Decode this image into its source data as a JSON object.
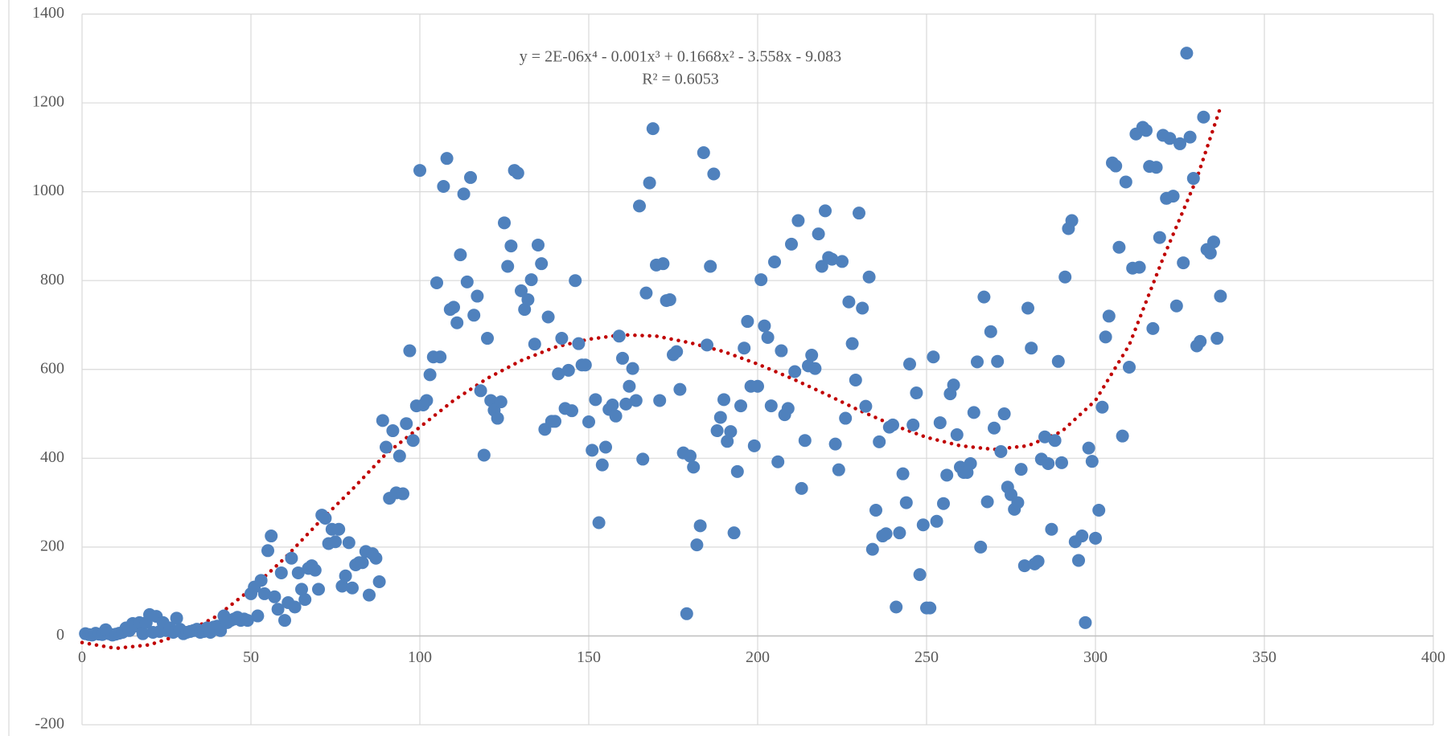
{
  "chart_data": {
    "type": "scatter",
    "color": "#4f81bd",
    "trendline_color": "#c00000",
    "grid": true,
    "xlim": [
      0,
      400
    ],
    "xticks": [
      0,
      50,
      100,
      150,
      200,
      250,
      300,
      350,
      400
    ],
    "ylim": [
      -200,
      1400
    ],
    "yticks": [
      -200,
      0,
      200,
      400,
      600,
      800,
      1000,
      1200,
      1400
    ],
    "annotations": [
      "y = 2E-06x⁴ - 0.001x³ + 0.1668x² - 3.558x - 9.083",
      "R² = 0.6053"
    ],
    "x": [
      1,
      2,
      3,
      4,
      5,
      6,
      7,
      8,
      9,
      10,
      11,
      12,
      13,
      14,
      15,
      16,
      17,
      18,
      19,
      20,
      21,
      22,
      23,
      24,
      25,
      26,
      27,
      28,
      29,
      30,
      31,
      32,
      33,
      34,
      35,
      36,
      37,
      38,
      39,
      40,
      41,
      42,
      43,
      44,
      45,
      46,
      47,
      48,
      49,
      50,
      51,
      52,
      53,
      54,
      55,
      56,
      57,
      58,
      59,
      60,
      61,
      62,
      63,
      64,
      65,
      66,
      67,
      68,
      69,
      70,
      71,
      72,
      73,
      74,
      75,
      76,
      77,
      78,
      79,
      80,
      81,
      82,
      83,
      84,
      85,
      86,
      87,
      88,
      89,
      90,
      91,
      92,
      93,
      94,
      95,
      96,
      97,
      98,
      99,
      100,
      101,
      102,
      103,
      104,
      105,
      106,
      107,
      108,
      109,
      110,
      111,
      112,
      113,
      114,
      115,
      116,
      117,
      118,
      119,
      120,
      121,
      122,
      123,
      124,
      125,
      126,
      127,
      128,
      129,
      130,
      131,
      132,
      133,
      134,
      135,
      136,
      137,
      138,
      139,
      140,
      141,
      142,
      143,
      144,
      145,
      146,
      147,
      148,
      149,
      150,
      151,
      152,
      153,
      154,
      155,
      156,
      157,
      158,
      159,
      160,
      161,
      162,
      163,
      164,
      165,
      166,
      167,
      168,
      169,
      170,
      171,
      172,
      173,
      174,
      175,
      176,
      177,
      178,
      179,
      180,
      181,
      182,
      183,
      184,
      185,
      186,
      187,
      188,
      189,
      190,
      191,
      192,
      193,
      194,
      195,
      196,
      197,
      198,
      199,
      200,
      201,
      202,
      203,
      204,
      205,
      206,
      207,
      208,
      209,
      210,
      211,
      212,
      213,
      214,
      215,
      216,
      217,
      218,
      219,
      220,
      221,
      222,
      223,
      224,
      225,
      226,
      227,
      228,
      229,
      230,
      231,
      232,
      233,
      234,
      235,
      236,
      237,
      238,
      239,
      240,
      241,
      242,
      243,
      244,
      245,
      246,
      247,
      248,
      249,
      250,
      251,
      252,
      253,
      254,
      255,
      256,
      257,
      258,
      259,
      260,
      261,
      262,
      263,
      264,
      265,
      266,
      267,
      268,
      269,
      270,
      271,
      272,
      273,
      274,
      275,
      276,
      277,
      278,
      279,
      280,
      281,
      282,
      283,
      284,
      285,
      286,
      287,
      288,
      289,
      290,
      291,
      292,
      293,
      294,
      295,
      296,
      297,
      298,
      299,
      300,
      301,
      302,
      303,
      304,
      305,
      306,
      307,
      308,
      309,
      310,
      311,
      312,
      313,
      314,
      315,
      316,
      317,
      318,
      319,
      320,
      321,
      322,
      323,
      324,
      325,
      326,
      327,
      328,
      329,
      330,
      331,
      332,
      333,
      334,
      335,
      336,
      337
    ],
    "values": [
      5,
      3,
      2,
      6,
      4,
      3,
      14,
      5,
      2,
      4,
      6,
      8,
      18,
      12,
      28,
      22,
      30,
      5,
      30,
      48,
      8,
      44,
      10,
      30,
      12,
      18,
      8,
      40,
      15,
      5,
      8,
      10,
      12,
      15,
      8,
      10,
      18,
      8,
      20,
      22,
      12,
      45,
      30,
      35,
      38,
      42,
      35,
      38,
      35,
      95,
      110,
      45,
      125,
      95,
      192,
      225,
      88,
      60,
      142,
      35,
      75,
      175,
      65,
      142,
      105,
      82,
      152,
      158,
      148,
      105,
      272,
      265,
      208,
      240,
      212,
      240,
      112,
      135,
      210,
      108,
      160,
      165,
      165,
      190,
      92,
      185,
      175,
      122,
      485,
      425,
      310,
      462,
      322,
      405,
      320,
      478,
      642,
      440,
      518,
      1048,
      520,
      530,
      588,
      628,
      795,
      628,
      1012,
      1075,
      735,
      740,
      705,
      858,
      995,
      797,
      1032,
      722,
      765,
      552,
      407,
      670,
      530,
      508,
      490,
      527,
      930,
      832,
      878,
      1048,
      1042,
      777,
      735,
      757,
      802,
      657,
      880,
      838,
      465,
      718,
      483,
      483,
      590,
      670,
      512,
      598,
      507,
      800,
      658,
      610,
      610,
      482,
      418,
      532,
      255,
      385,
      425,
      510,
      520,
      495,
      675,
      625,
      522,
      562,
      602,
      530,
      968,
      398,
      772,
      1020,
      1142,
      835,
      530,
      838,
      755,
      757,
      633,
      640,
      555,
      412,
      50,
      405,
      380,
      205,
      248,
      1088,
      655,
      832,
      1040,
      462,
      492,
      532,
      438,
      460,
      232,
      370,
      518,
      648,
      708,
      562,
      428,
      562,
      802,
      698,
      672,
      518,
      842,
      392,
      642,
      498,
      512,
      882,
      595,
      935,
      332,
      440,
      608,
      632,
      602,
      905,
      832,
      957,
      852,
      848,
      432,
      374,
      843,
      490,
      752,
      658,
      576,
      952,
      738,
      517,
      808,
      195,
      283,
      437,
      225,
      230,
      470,
      475,
      65,
      232,
      365,
      300,
      612,
      475,
      547,
      138,
      250,
      63,
      63,
      628,
      258,
      480,
      298,
      362,
      545,
      565,
      453,
      380,
      368,
      368,
      388,
      503,
      617,
      200,
      763,
      302,
      685,
      468,
      618,
      415,
      500,
      335,
      318,
      285,
      300,
      375,
      158,
      738,
      648,
      162,
      168,
      398,
      448,
      388,
      240,
      440,
      618,
      390,
      808,
      917,
      935,
      212,
      170,
      225,
      30,
      423,
      393,
      220,
      283,
      515,
      673,
      720,
      1065,
      1058,
      875,
      450,
      1022,
      605,
      828,
      1130,
      830,
      1145,
      1138,
      1057,
      692,
      1055,
      897,
      1127,
      985,
      1120,
      990,
      743,
      1108,
      840,
      1312,
      1123,
      1030,
      653,
      663,
      1168,
      870,
      862,
      887,
      670,
      765
    ],
    "trendline": {
      "x": [
        0,
        10,
        20,
        30,
        40,
        50,
        60,
        70,
        80,
        90,
        100,
        110,
        120,
        130,
        140,
        150,
        160,
        170,
        180,
        190,
        200,
        210,
        220,
        230,
        240,
        250,
        260,
        270,
        280,
        290,
        300,
        310,
        320,
        330,
        337
      ],
      "y": [
        -15,
        -28,
        -20,
        5,
        45,
        105,
        175,
        255,
        330,
        410,
        470,
        530,
        580,
        620,
        650,
        668,
        678,
        675,
        660,
        640,
        612,
        580,
        545,
        508,
        475,
        447,
        428,
        420,
        428,
        460,
        530,
        655,
        850,
        1030,
        1190
      ]
    }
  }
}
